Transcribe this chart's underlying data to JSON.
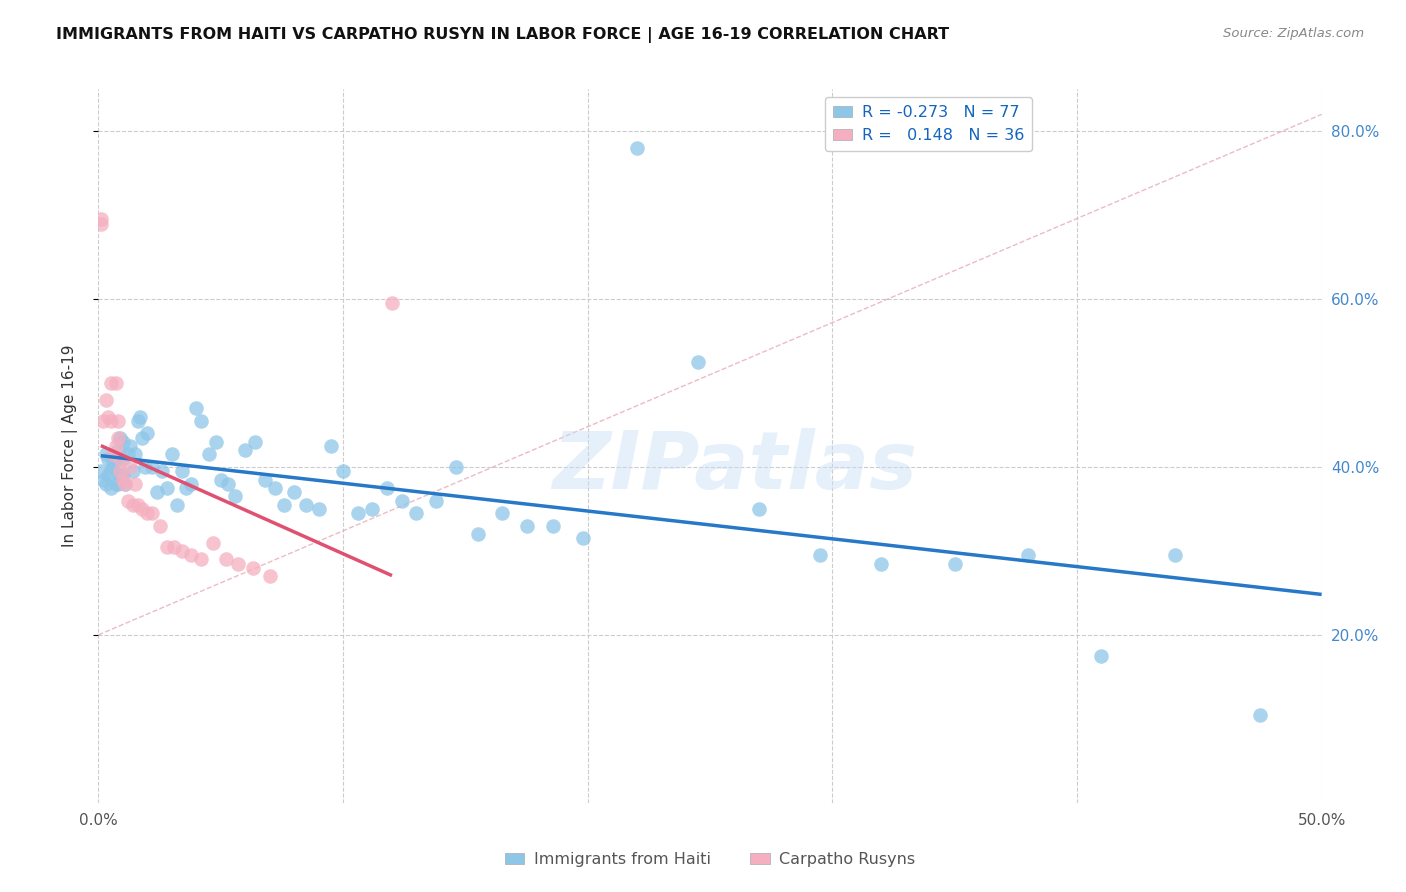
{
  "title": "IMMIGRANTS FROM HAITI VS CARPATHO RUSYN IN LABOR FORCE | AGE 16-19 CORRELATION CHART",
  "source": "Source: ZipAtlas.com",
  "ylabel": "In Labor Force | Age 16-19",
  "xlim": [
    0.0,
    0.5
  ],
  "ylim": [
    0.0,
    0.85
  ],
  "xtick_positions": [
    0.0,
    0.1,
    0.2,
    0.3,
    0.4,
    0.5
  ],
  "xticklabels": [
    "0.0%",
    "",
    "",
    "",
    "",
    "50.0%"
  ],
  "ytick_positions": [
    0.2,
    0.4,
    0.6,
    0.8
  ],
  "yticklabels_right": [
    "20.0%",
    "40.0%",
    "60.0%",
    "80.0%"
  ],
  "haiti_R": "-0.273",
  "haiti_N": "77",
  "rusyn_R": "0.148",
  "rusyn_N": "36",
  "haiti_color": "#8ec6e8",
  "rusyn_color": "#f5afc0",
  "haiti_line_color": "#2878c8",
  "rusyn_line_color": "#e05070",
  "dashed_line_color": "#e8aab8",
  "watermark": "ZIPatlas",
  "background_color": "#ffffff",
  "haiti_points_x": [
    0.001,
    0.002,
    0.003,
    0.003,
    0.004,
    0.004,
    0.005,
    0.005,
    0.006,
    0.006,
    0.007,
    0.007,
    0.008,
    0.008,
    0.009,
    0.009,
    0.01,
    0.01,
    0.01,
    0.011,
    0.012,
    0.013,
    0.014,
    0.015,
    0.016,
    0.017,
    0.018,
    0.019,
    0.02,
    0.022,
    0.024,
    0.026,
    0.028,
    0.03,
    0.032,
    0.034,
    0.036,
    0.038,
    0.04,
    0.042,
    0.045,
    0.048,
    0.05,
    0.053,
    0.056,
    0.06,
    0.064,
    0.068,
    0.072,
    0.076,
    0.08,
    0.085,
    0.09,
    0.095,
    0.1,
    0.106,
    0.112,
    0.118,
    0.124,
    0.13,
    0.138,
    0.146,
    0.155,
    0.165,
    0.175,
    0.186,
    0.198,
    0.22,
    0.245,
    0.27,
    0.295,
    0.32,
    0.35,
    0.38,
    0.41,
    0.44,
    0.475
  ],
  "haiti_points_y": [
    0.395,
    0.385,
    0.415,
    0.38,
    0.39,
    0.41,
    0.375,
    0.395,
    0.4,
    0.405,
    0.41,
    0.38,
    0.38,
    0.42,
    0.435,
    0.39,
    0.43,
    0.41,
    0.39,
    0.38,
    0.415,
    0.425,
    0.395,
    0.415,
    0.455,
    0.46,
    0.435,
    0.4,
    0.44,
    0.4,
    0.37,
    0.395,
    0.375,
    0.415,
    0.355,
    0.395,
    0.375,
    0.38,
    0.47,
    0.455,
    0.415,
    0.43,
    0.385,
    0.38,
    0.365,
    0.42,
    0.43,
    0.385,
    0.375,
    0.355,
    0.37,
    0.355,
    0.35,
    0.425,
    0.395,
    0.345,
    0.35,
    0.375,
    0.36,
    0.345,
    0.36,
    0.4,
    0.32,
    0.345,
    0.33,
    0.33,
    0.315,
    0.78,
    0.525,
    0.35,
    0.295,
    0.285,
    0.285,
    0.295,
    0.175,
    0.295,
    0.105
  ],
  "rusyn_points_x": [
    0.001,
    0.001,
    0.002,
    0.003,
    0.004,
    0.005,
    0.005,
    0.006,
    0.007,
    0.007,
    0.008,
    0.008,
    0.009,
    0.009,
    0.01,
    0.011,
    0.012,
    0.013,
    0.014,
    0.015,
    0.016,
    0.018,
    0.02,
    0.022,
    0.025,
    0.028,
    0.031,
    0.034,
    0.038,
    0.042,
    0.047,
    0.052,
    0.057,
    0.063,
    0.07,
    0.12
  ],
  "rusyn_points_y": [
    0.69,
    0.695,
    0.455,
    0.48,
    0.46,
    0.5,
    0.455,
    0.415,
    0.425,
    0.5,
    0.435,
    0.455,
    0.41,
    0.395,
    0.385,
    0.38,
    0.36,
    0.4,
    0.355,
    0.38,
    0.355,
    0.35,
    0.345,
    0.345,
    0.33,
    0.305,
    0.305,
    0.3,
    0.295,
    0.29,
    0.31,
    0.29,
    0.285,
    0.28,
    0.27,
    0.595
  ]
}
